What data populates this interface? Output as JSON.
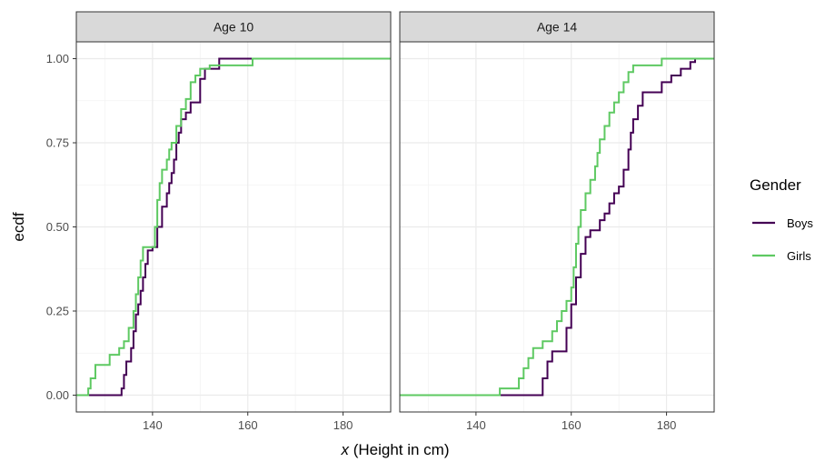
{
  "chart_data": {
    "type": "line",
    "step": true,
    "ylabel": "ecdf",
    "xlabel_var": "x",
    "xlabel_rest": " (Height in cm)",
    "xlim": [
      124,
      190
    ],
    "ylim": [
      -0.05,
      1.05
    ],
    "x_ticks": [
      140,
      160,
      180
    ],
    "x_tick_labels": [
      "140",
      "160",
      "180"
    ],
    "y_ticks": [
      0,
      0.25,
      0.5,
      0.75,
      1.0
    ],
    "y_tick_labels": [
      "0.00",
      "0.25",
      "0.50",
      "0.75",
      "1.00"
    ],
    "grid": true,
    "legend": {
      "title": "Gender",
      "placement": "right",
      "entries": [
        {
          "name": "Boys",
          "color": "#440154"
        },
        {
          "name": "Girls",
          "color": "#5ec962"
        }
      ]
    },
    "panels": [
      {
        "strip": "Age 10",
        "series": [
          {
            "name": "Boys",
            "color": "#440154",
            "points": [
              [
                124,
                0
              ],
              [
                133.5,
                0
              ],
              [
                133.5,
                0.02
              ],
              [
                134,
                0.02
              ],
              [
                134,
                0.06
              ],
              [
                134.5,
                0.06
              ],
              [
                134.5,
                0.1
              ],
              [
                135.5,
                0.1
              ],
              [
                135.5,
                0.14
              ],
              [
                136,
                0.14
              ],
              [
                136,
                0.19
              ],
              [
                136.5,
                0.19
              ],
              [
                136.5,
                0.24
              ],
              [
                137,
                0.24
              ],
              [
                137,
                0.27
              ],
              [
                137.5,
                0.27
              ],
              [
                137.5,
                0.31
              ],
              [
                138,
                0.31
              ],
              [
                138,
                0.35
              ],
              [
                138.5,
                0.35
              ],
              [
                138.5,
                0.39
              ],
              [
                139,
                0.39
              ],
              [
                139,
                0.43
              ],
              [
                140,
                0.43
              ],
              [
                140,
                0.44
              ],
              [
                141,
                0.44
              ],
              [
                141,
                0.5
              ],
              [
                142,
                0.5
              ],
              [
                142,
                0.56
              ],
              [
                143,
                0.56
              ],
              [
                143,
                0.6
              ],
              [
                143.5,
                0.6
              ],
              [
                143.5,
                0.63
              ],
              [
                144,
                0.63
              ],
              [
                144,
                0.66
              ],
              [
                144.5,
                0.66
              ],
              [
                144.5,
                0.7
              ],
              [
                145,
                0.7
              ],
              [
                145,
                0.75
              ],
              [
                145.5,
                0.75
              ],
              [
                145.5,
                0.78
              ],
              [
                146,
                0.78
              ],
              [
                146,
                0.82
              ],
              [
                147,
                0.82
              ],
              [
                147,
                0.84
              ],
              [
                148,
                0.84
              ],
              [
                148,
                0.87
              ],
              [
                150,
                0.87
              ],
              [
                150,
                0.94
              ],
              [
                151,
                0.94
              ],
              [
                151,
                0.97
              ],
              [
                154,
                0.97
              ],
              [
                154,
                1
              ],
              [
                190,
                1
              ]
            ]
          },
          {
            "name": "Girls",
            "color": "#5ec962",
            "points": [
              [
                124,
                0
              ],
              [
                126.5,
                0
              ],
              [
                126.5,
                0.02
              ],
              [
                127,
                0.02
              ],
              [
                127,
                0.05
              ],
              [
                128,
                0.05
              ],
              [
                128,
                0.09
              ],
              [
                131,
                0.09
              ],
              [
                131,
                0.12
              ],
              [
                133,
                0.12
              ],
              [
                133,
                0.14
              ],
              [
                134,
                0.14
              ],
              [
                134,
                0.16
              ],
              [
                135,
                0.16
              ],
              [
                135,
                0.2
              ],
              [
                136,
                0.2
              ],
              [
                136,
                0.25
              ],
              [
                136.5,
                0.25
              ],
              [
                136.5,
                0.3
              ],
              [
                137,
                0.3
              ],
              [
                137,
                0.35
              ],
              [
                137.5,
                0.35
              ],
              [
                137.5,
                0.4
              ],
              [
                138,
                0.4
              ],
              [
                138,
                0.44
              ],
              [
                140.5,
                0.44
              ],
              [
                140.5,
                0.5
              ],
              [
                141,
                0.5
              ],
              [
                141,
                0.58
              ],
              [
                141.5,
                0.58
              ],
              [
                141.5,
                0.63
              ],
              [
                142,
                0.63
              ],
              [
                142,
                0.67
              ],
              [
                143,
                0.67
              ],
              [
                143,
                0.7
              ],
              [
                143.5,
                0.7
              ],
              [
                143.5,
                0.73
              ],
              [
                144,
                0.73
              ],
              [
                144,
                0.75
              ],
              [
                145,
                0.75
              ],
              [
                145,
                0.8
              ],
              [
                146,
                0.8
              ],
              [
                146,
                0.85
              ],
              [
                147,
                0.85
              ],
              [
                147,
                0.88
              ],
              [
                148,
                0.88
              ],
              [
                148,
                0.93
              ],
              [
                149,
                0.93
              ],
              [
                149,
                0.95
              ],
              [
                150,
                0.95
              ],
              [
                150,
                0.97
              ],
              [
                152,
                0.97
              ],
              [
                152,
                0.98
              ],
              [
                161,
                0.98
              ],
              [
                161,
                1
              ],
              [
                190,
                1
              ]
            ]
          }
        ]
      },
      {
        "strip": "Age 14",
        "series": [
          {
            "name": "Boys",
            "color": "#440154",
            "points": [
              [
                124,
                0
              ],
              [
                154,
                0
              ],
              [
                154,
                0.05
              ],
              [
                155,
                0.05
              ],
              [
                155,
                0.1
              ],
              [
                156,
                0.1
              ],
              [
                156,
                0.13
              ],
              [
                159,
                0.13
              ],
              [
                159,
                0.2
              ],
              [
                160,
                0.2
              ],
              [
                160,
                0.27
              ],
              [
                161,
                0.27
              ],
              [
                161,
                0.35
              ],
              [
                162,
                0.35
              ],
              [
                162,
                0.42
              ],
              [
                163,
                0.42
              ],
              [
                163,
                0.47
              ],
              [
                164,
                0.47
              ],
              [
                164,
                0.49
              ],
              [
                166,
                0.49
              ],
              [
                166,
                0.52
              ],
              [
                167,
                0.52
              ],
              [
                167,
                0.54
              ],
              [
                168,
                0.54
              ],
              [
                168,
                0.57
              ],
              [
                169,
                0.57
              ],
              [
                169,
                0.6
              ],
              [
                170,
                0.6
              ],
              [
                170,
                0.62
              ],
              [
                171,
                0.62
              ],
              [
                171,
                0.67
              ],
              [
                172,
                0.67
              ],
              [
                172,
                0.73
              ],
              [
                172.5,
                0.73
              ],
              [
                172.5,
                0.78
              ],
              [
                173,
                0.78
              ],
              [
                173,
                0.82
              ],
              [
                174,
                0.82
              ],
              [
                174,
                0.86
              ],
              [
                175,
                0.86
              ],
              [
                175,
                0.9
              ],
              [
                179,
                0.9
              ],
              [
                179,
                0.93
              ],
              [
                181,
                0.93
              ],
              [
                181,
                0.95
              ],
              [
                183,
                0.95
              ],
              [
                183,
                0.97
              ],
              [
                185,
                0.97
              ],
              [
                185,
                0.99
              ],
              [
                186,
                0.99
              ],
              [
                186,
                1
              ],
              [
                190,
                1
              ]
            ]
          },
          {
            "name": "Girls",
            "color": "#5ec962",
            "points": [
              [
                124,
                0
              ],
              [
                145,
                0
              ],
              [
                145,
                0.02
              ],
              [
                149,
                0.02
              ],
              [
                149,
                0.05
              ],
              [
                150,
                0.05
              ],
              [
                150,
                0.08
              ],
              [
                151,
                0.08
              ],
              [
                151,
                0.11
              ],
              [
                152,
                0.11
              ],
              [
                152,
                0.14
              ],
              [
                154,
                0.14
              ],
              [
                154,
                0.16
              ],
              [
                156,
                0.16
              ],
              [
                156,
                0.19
              ],
              [
                157,
                0.19
              ],
              [
                157,
                0.22
              ],
              [
                158,
                0.22
              ],
              [
                158,
                0.25
              ],
              [
                159,
                0.25
              ],
              [
                159,
                0.28
              ],
              [
                160,
                0.28
              ],
              [
                160,
                0.32
              ],
              [
                160.5,
                0.32
              ],
              [
                160.5,
                0.38
              ],
              [
                161,
                0.38
              ],
              [
                161,
                0.45
              ],
              [
                161.5,
                0.45
              ],
              [
                161.5,
                0.5
              ],
              [
                162,
                0.5
              ],
              [
                162,
                0.55
              ],
              [
                163,
                0.55
              ],
              [
                163,
                0.6
              ],
              [
                164,
                0.6
              ],
              [
                164,
                0.64
              ],
              [
                165,
                0.64
              ],
              [
                165,
                0.68
              ],
              [
                165.5,
                0.68
              ],
              [
                165.5,
                0.72
              ],
              [
                166,
                0.72
              ],
              [
                166,
                0.76
              ],
              [
                167,
                0.76
              ],
              [
                167,
                0.8
              ],
              [
                168,
                0.8
              ],
              [
                168,
                0.84
              ],
              [
                169,
                0.84
              ],
              [
                169,
                0.87
              ],
              [
                170,
                0.87
              ],
              [
                170,
                0.9
              ],
              [
                171,
                0.9
              ],
              [
                171,
                0.93
              ],
              [
                172,
                0.93
              ],
              [
                172,
                0.96
              ],
              [
                173,
                0.96
              ],
              [
                173,
                0.98
              ],
              [
                179,
                0.98
              ],
              [
                179,
                1
              ],
              [
                190,
                1
              ]
            ]
          }
        ]
      }
    ]
  }
}
